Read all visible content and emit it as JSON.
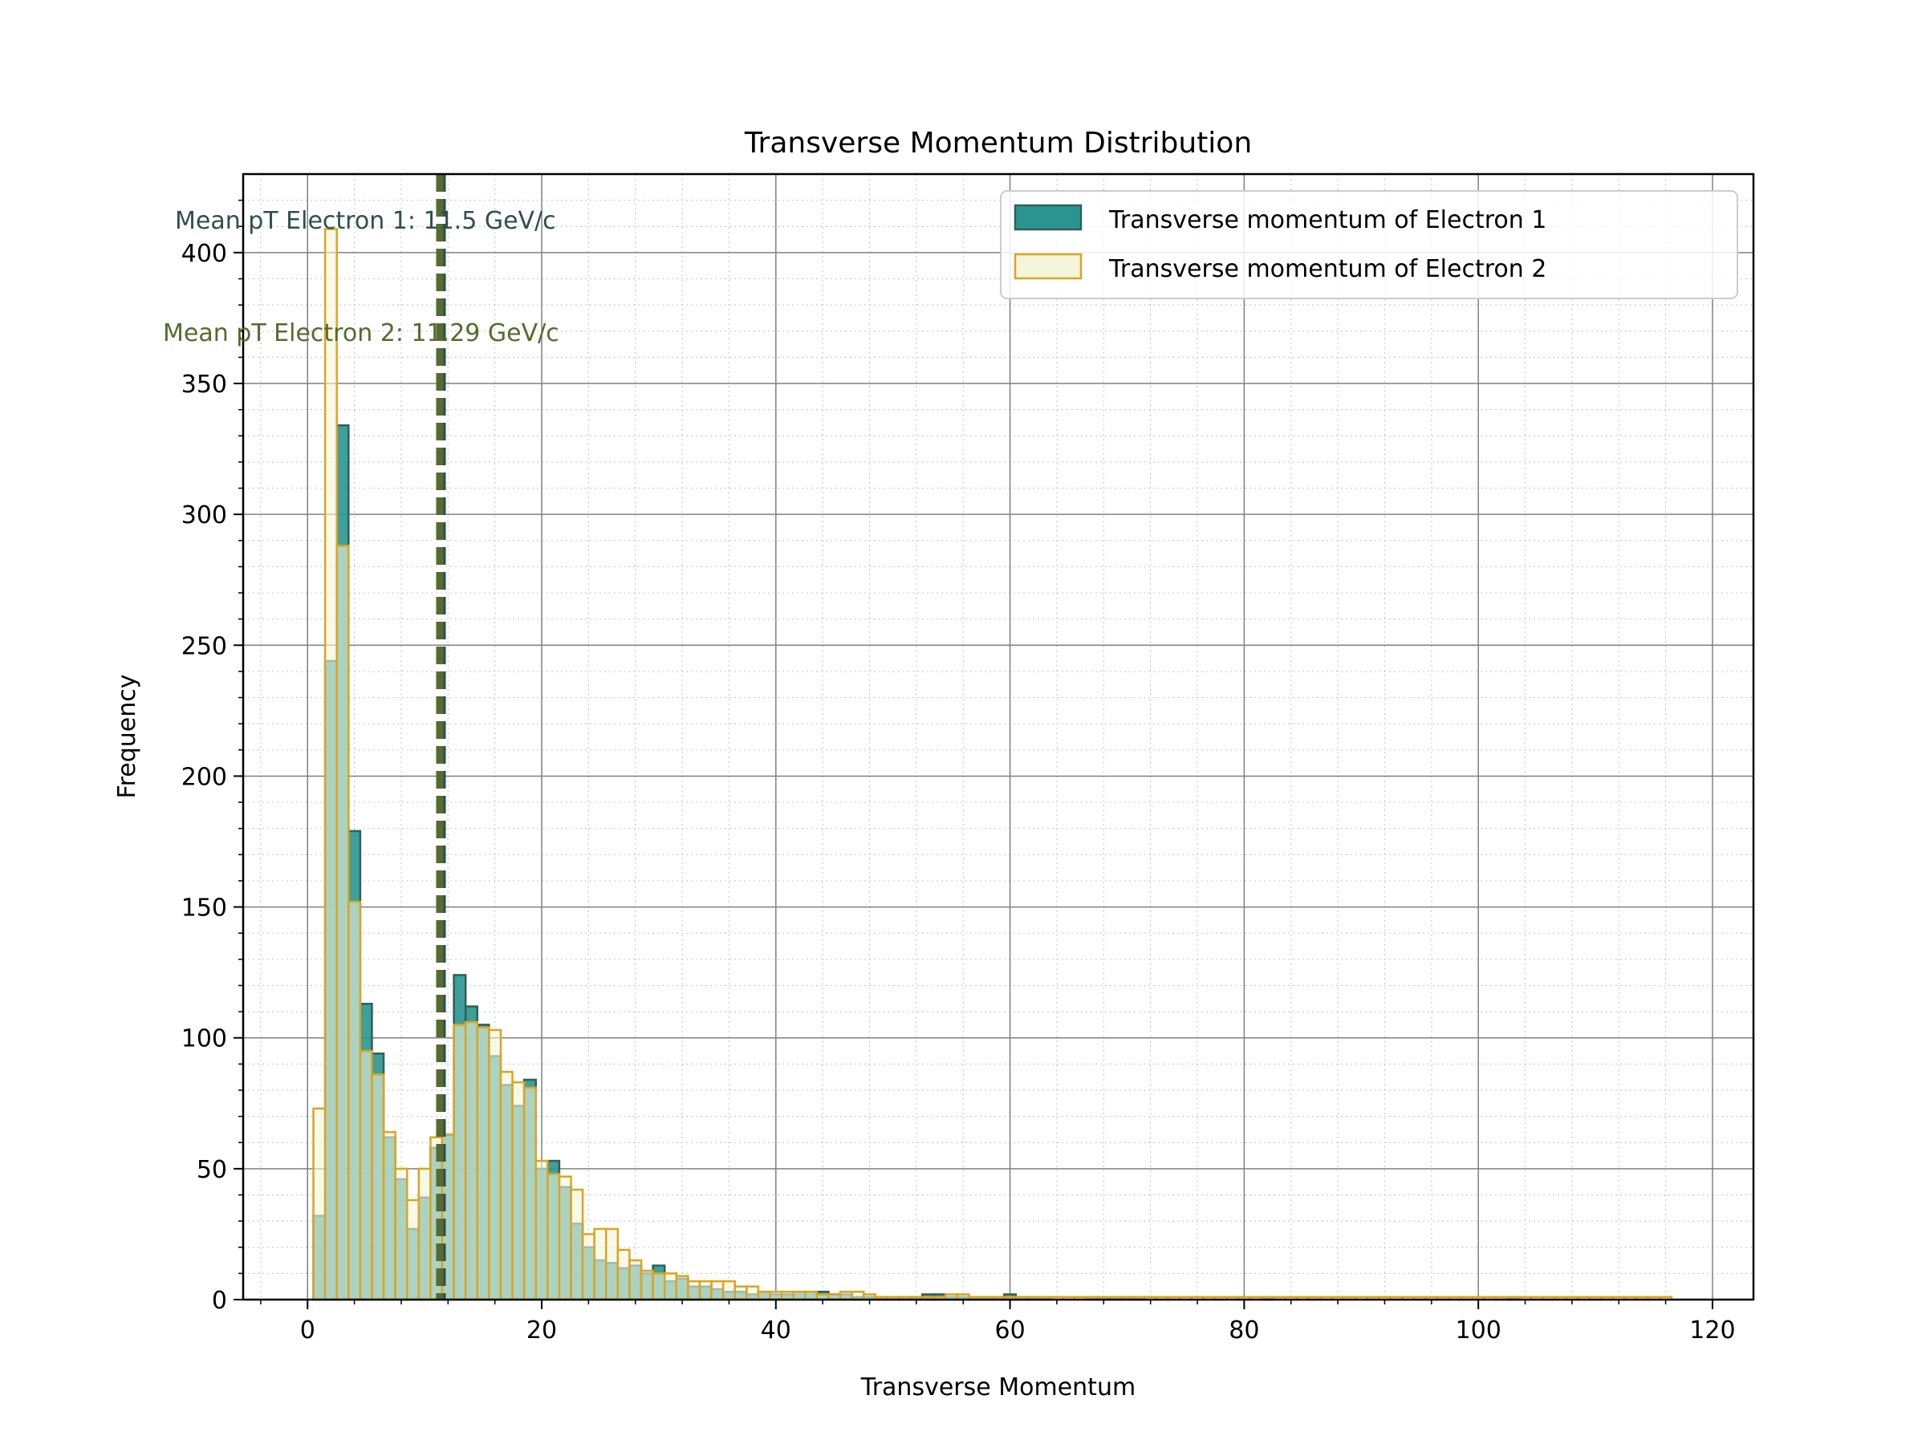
{
  "chart_data": {
    "type": "bar",
    "title": "Transverse Momentum Distribution",
    "xlabel": "Transverse Momentum",
    "ylabel": "Frequency",
    "xlim": [
      -5.5,
      123.5
    ],
    "ylim": [
      0,
      430
    ],
    "x_ticks": [
      0,
      20,
      40,
      60,
      80,
      100,
      120
    ],
    "y_ticks": [
      0,
      50,
      100,
      150,
      200,
      250,
      300,
      350,
      400
    ],
    "grid": true,
    "legend_position": "top-right",
    "bin_width": 1.0,
    "series": [
      {
        "name": "Transverse momentum of Electron 1",
        "fill_color": "#2a9590",
        "edge_color": "#2f5f5a",
        "bin_starts": [
          0.5,
          1.5,
          2.5,
          3.5,
          4.5,
          5.5,
          6.5,
          7.5,
          8.5,
          9.5,
          10.5,
          11.5,
          12.5,
          13.5,
          14.5,
          15.5,
          16.5,
          17.5,
          18.5,
          19.5,
          20.5,
          21.5,
          22.5,
          23.5,
          24.5,
          25.5,
          26.5,
          27.5,
          28.5,
          29.5,
          30.5,
          31.5,
          32.5,
          33.5,
          34.5,
          35.5,
          36.5,
          37.5,
          38.5,
          39.5,
          40.5,
          41.5,
          42.5,
          43.5,
          44.5,
          45.5,
          46.5,
          47.5,
          48.5,
          49.5,
          50.5,
          51.5,
          52.5,
          53.5,
          54.5,
          55.5,
          56.5,
          57.5,
          58.5,
          59.5,
          60.5,
          61.5,
          62.5,
          63.5,
          64.5,
          65.5,
          66.5,
          67.5,
          68.5,
          69.5,
          70.5,
          71.5,
          72.5,
          73.5,
          74.5,
          75.5,
          76.5,
          77.5,
          78.5,
          79.5,
          80.5,
          81.5,
          82.5,
          83.5,
          84.5,
          85.5,
          86.5,
          87.5,
          88.5,
          89.5,
          90.5,
          91.5,
          92.5,
          93.5,
          94.5,
          95.5,
          96.5,
          97.5,
          98.5,
          99.5,
          100.5,
          101.5,
          102.5
        ],
        "values": [
          32,
          244,
          334,
          179,
          113,
          94,
          62,
          46,
          27,
          39,
          58,
          63,
          124,
          112,
          105,
          93,
          82,
          74,
          84,
          50,
          53,
          43,
          29,
          20,
          15,
          14,
          12,
          13,
          10,
          13,
          7,
          8,
          5,
          5,
          4,
          3,
          3,
          2,
          3,
          2,
          2,
          3,
          3,
          3,
          2,
          2,
          1,
          1,
          1,
          1,
          1,
          1,
          2,
          2,
          1,
          1,
          1,
          1,
          1,
          2,
          1,
          1,
          1,
          0,
          0,
          0,
          1,
          1,
          1,
          1,
          1,
          0,
          0,
          0,
          0,
          0,
          0,
          0,
          0,
          0,
          0,
          1,
          0,
          0,
          0,
          0,
          0,
          0,
          0,
          0,
          0,
          0,
          0,
          0,
          0,
          0,
          0,
          0,
          0,
          0,
          0,
          0,
          1
        ],
        "mean_label": "Mean pT Electron 1: 11.5 GeV/c",
        "mean_value": 11.5,
        "mean_color": "#2f4f4f"
      },
      {
        "name": "Transverse momentum of Electron 2",
        "fill_color": "#f5f5dc",
        "edge_color": "#daa520",
        "bin_starts": [
          0.5,
          1.5,
          2.5,
          3.5,
          4.5,
          5.5,
          6.5,
          7.5,
          8.5,
          9.5,
          10.5,
          11.5,
          12.5,
          13.5,
          14.5,
          15.5,
          16.5,
          17.5,
          18.5,
          19.5,
          20.5,
          21.5,
          22.5,
          23.5,
          24.5,
          25.5,
          26.5,
          27.5,
          28.5,
          29.5,
          30.5,
          31.5,
          32.5,
          33.5,
          34.5,
          35.5,
          36.5,
          37.5,
          38.5,
          39.5,
          40.5,
          41.5,
          42.5,
          43.5,
          44.5,
          45.5,
          46.5,
          47.5,
          48.5,
          49.5,
          50.5,
          51.5,
          52.5,
          53.5,
          54.5,
          55.5,
          56.5,
          57.5,
          58.5,
          59.5,
          60.5,
          61.5,
          62.5,
          63.5,
          64.5,
          65.5,
          66.5,
          67.5,
          68.5,
          69.5,
          70.5,
          71.5,
          72.5,
          73.5,
          74.5,
          75.5,
          76.5,
          77.5,
          78.5,
          79.5,
          80.5,
          81.5,
          82.5,
          83.5,
          84.5,
          85.5,
          86.5,
          87.5,
          88.5,
          89.5,
          90.5,
          91.5,
          92.5,
          93.5,
          94.5,
          95.5,
          96.5,
          97.5,
          98.5,
          99.5,
          100.5,
          101.5,
          102.5,
          103.5,
          104.5,
          105.5,
          106.5,
          107.5,
          108.5,
          109.5,
          110.5,
          111.5,
          112.5,
          113.5,
          114.5,
          115.5,
          116.5
        ],
        "values": [
          73,
          409,
          288,
          152,
          95,
          86,
          64,
          50,
          38,
          50,
          62,
          63,
          105,
          106,
          104,
          103,
          87,
          83,
          81,
          53,
          48,
          47,
          42,
          25,
          27,
          27,
          19,
          15,
          11,
          10,
          10,
          9,
          7,
          7,
          7,
          7,
          5,
          5,
          3,
          3,
          3,
          3,
          3,
          2,
          2,
          3,
          3,
          2,
          1,
          1,
          1,
          1,
          1,
          1,
          2,
          2,
          1,
          1,
          1,
          1,
          1,
          1,
          1,
          1,
          1,
          1,
          1,
          1,
          1,
          1,
          1,
          1,
          1,
          1,
          1,
          1,
          1,
          1,
          1,
          1,
          1,
          1,
          1,
          1,
          1,
          1,
          1,
          1,
          1,
          1,
          1,
          1,
          1,
          1,
          1,
          1,
          1,
          1,
          1,
          1,
          1,
          1,
          1,
          1,
          1,
          1,
          1,
          1,
          1,
          1,
          1,
          1,
          1,
          1,
          1,
          1
        ],
        "mean_label": "Mean pT Electron 2: 11.29 GeV/c",
        "mean_value": 11.29,
        "mean_color": "#556b2f"
      }
    ]
  }
}
